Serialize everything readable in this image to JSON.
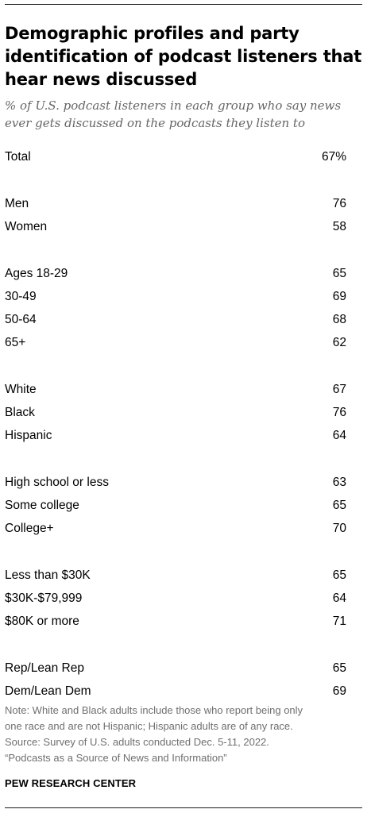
{
  "title": "Demographic profiles and party identification of podcast listeners that hear news discussed",
  "subtitle": "% of U.S. podcast listeners in each group who say news ever gets discussed on the podcasts they listen to",
  "chart_data": {
    "type": "table",
    "rows": [
      {
        "label": "Total",
        "value": "67%",
        "group": 0
      },
      {
        "label": "Men",
        "value": "76",
        "group": 1
      },
      {
        "label": "Women",
        "value": "58",
        "group": 1
      },
      {
        "label": "Ages 18-29",
        "value": "65",
        "group": 2
      },
      {
        "label": "30-49",
        "value": "69",
        "group": 2
      },
      {
        "label": "50-64",
        "value": "68",
        "group": 2
      },
      {
        "label": "65+",
        "value": "62",
        "group": 2
      },
      {
        "label": "White",
        "value": "67",
        "group": 3
      },
      {
        "label": "Black",
        "value": "76",
        "group": 3
      },
      {
        "label": "Hispanic",
        "value": "64",
        "group": 3
      },
      {
        "label": "High school or less",
        "value": "63",
        "group": 4
      },
      {
        "label": "Some college",
        "value": "65",
        "group": 4
      },
      {
        "label": "College+",
        "value": "70",
        "group": 4
      },
      {
        "label": "Less than $30K",
        "value": "65",
        "group": 5
      },
      {
        "label": "$30K-$79,999",
        "value": "64",
        "group": 5
      },
      {
        "label": "$80K or more",
        "value": "71",
        "group": 5
      },
      {
        "label": "Rep/Lean Rep",
        "value": "65",
        "group": 6
      },
      {
        "label": "Dem/Lean Dem",
        "value": "69",
        "group": 6
      }
    ]
  },
  "notes": [
    "Note: White and Black adults include those who report being only",
    "one race and are not Hispanic; Hispanic adults are of any race.",
    "Source: Survey of U.S. adults conducted Dec. 5-11, 2022.",
    "“Podcasts as a Source of News and Information”"
  ],
  "source_org": "PEW RESEARCH CENTER",
  "colors": {
    "text": "#000000",
    "subtitle": "#666666",
    "note": "#6f6f6f",
    "rule": "#1a1a1a"
  }
}
